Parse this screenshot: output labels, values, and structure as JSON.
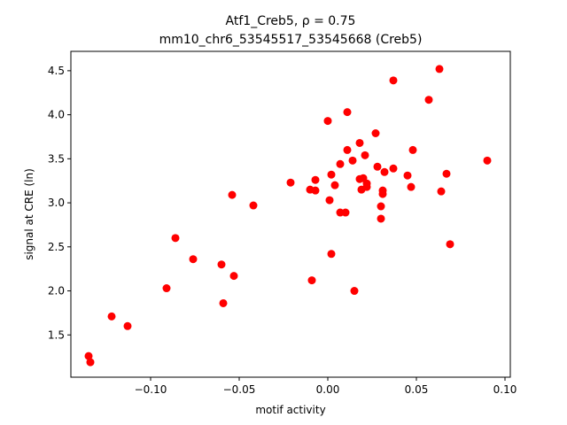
{
  "chart_data": {
    "type": "scatter",
    "title_line1": "Atf1_Creb5, ρ = 0.75",
    "title_line2": "mm10_chr6_53545517_53545668 (Creb5)",
    "xlabel": "motif activity",
    "ylabel": "signal at CRE (ln)",
    "xlim": [
      -0.145,
      0.103
    ],
    "ylim": [
      1.02,
      4.72
    ],
    "xticks": [
      {
        "value": -0.1,
        "label": "−0.10"
      },
      {
        "value": -0.05,
        "label": "−0.05"
      },
      {
        "value": 0.0,
        "label": "0.00"
      },
      {
        "value": 0.05,
        "label": "0.05"
      },
      {
        "value": 0.1,
        "label": "0.10"
      }
    ],
    "yticks": [
      {
        "value": 1.5,
        "label": "1.5"
      },
      {
        "value": 2.0,
        "label": "2.0"
      },
      {
        "value": 2.5,
        "label": "2.5"
      },
      {
        "value": 3.0,
        "label": "3.0"
      },
      {
        "value": 3.5,
        "label": "3.5"
      },
      {
        "value": 4.0,
        "label": "4.0"
      },
      {
        "value": 4.5,
        "label": "4.5"
      }
    ],
    "grid": false,
    "marker_color": "#ff0000",
    "points": [
      {
        "x": -0.135,
        "y": 1.26
      },
      {
        "x": -0.134,
        "y": 1.19
      },
      {
        "x": -0.122,
        "y": 1.71
      },
      {
        "x": -0.113,
        "y": 1.6
      },
      {
        "x": -0.091,
        "y": 2.03
      },
      {
        "x": -0.086,
        "y": 2.6
      },
      {
        "x": -0.076,
        "y": 2.36
      },
      {
        "x": -0.06,
        "y": 2.3
      },
      {
        "x": -0.059,
        "y": 1.86
      },
      {
        "x": -0.054,
        "y": 3.09
      },
      {
        "x": -0.053,
        "y": 2.17
      },
      {
        "x": -0.042,
        "y": 2.97
      },
      {
        "x": -0.021,
        "y": 3.23
      },
      {
        "x": -0.01,
        "y": 3.15
      },
      {
        "x": -0.009,
        "y": 2.12
      },
      {
        "x": -0.007,
        "y": 3.26
      },
      {
        "x": -0.007,
        "y": 3.14
      },
      {
        "x": 0.0,
        "y": 3.93
      },
      {
        "x": 0.001,
        "y": 3.03
      },
      {
        "x": 0.002,
        "y": 3.32
      },
      {
        "x": 0.002,
        "y": 2.42
      },
      {
        "x": 0.004,
        "y": 3.2
      },
      {
        "x": 0.007,
        "y": 3.44
      },
      {
        "x": 0.007,
        "y": 2.89
      },
      {
        "x": 0.01,
        "y": 2.89
      },
      {
        "x": 0.011,
        "y": 3.6
      },
      {
        "x": 0.011,
        "y": 4.03
      },
      {
        "x": 0.014,
        "y": 3.48
      },
      {
        "x": 0.015,
        "y": 2.0
      },
      {
        "x": 0.018,
        "y": 3.68
      },
      {
        "x": 0.018,
        "y": 3.27
      },
      {
        "x": 0.019,
        "y": 3.15
      },
      {
        "x": 0.02,
        "y": 3.28
      },
      {
        "x": 0.021,
        "y": 3.54
      },
      {
        "x": 0.022,
        "y": 3.18
      },
      {
        "x": 0.022,
        "y": 3.22
      },
      {
        "x": 0.027,
        "y": 3.79
      },
      {
        "x": 0.028,
        "y": 3.41
      },
      {
        "x": 0.03,
        "y": 2.82
      },
      {
        "x": 0.03,
        "y": 2.96
      },
      {
        "x": 0.031,
        "y": 3.14
      },
      {
        "x": 0.031,
        "y": 3.1
      },
      {
        "x": 0.032,
        "y": 3.35
      },
      {
        "x": 0.037,
        "y": 3.39
      },
      {
        "x": 0.037,
        "y": 4.39
      },
      {
        "x": 0.045,
        "y": 3.31
      },
      {
        "x": 0.047,
        "y": 3.18
      },
      {
        "x": 0.048,
        "y": 3.6
      },
      {
        "x": 0.057,
        "y": 4.17
      },
      {
        "x": 0.063,
        "y": 4.52
      },
      {
        "x": 0.064,
        "y": 3.13
      },
      {
        "x": 0.067,
        "y": 3.33
      },
      {
        "x": 0.069,
        "y": 2.53
      },
      {
        "x": 0.09,
        "y": 3.48
      }
    ]
  }
}
